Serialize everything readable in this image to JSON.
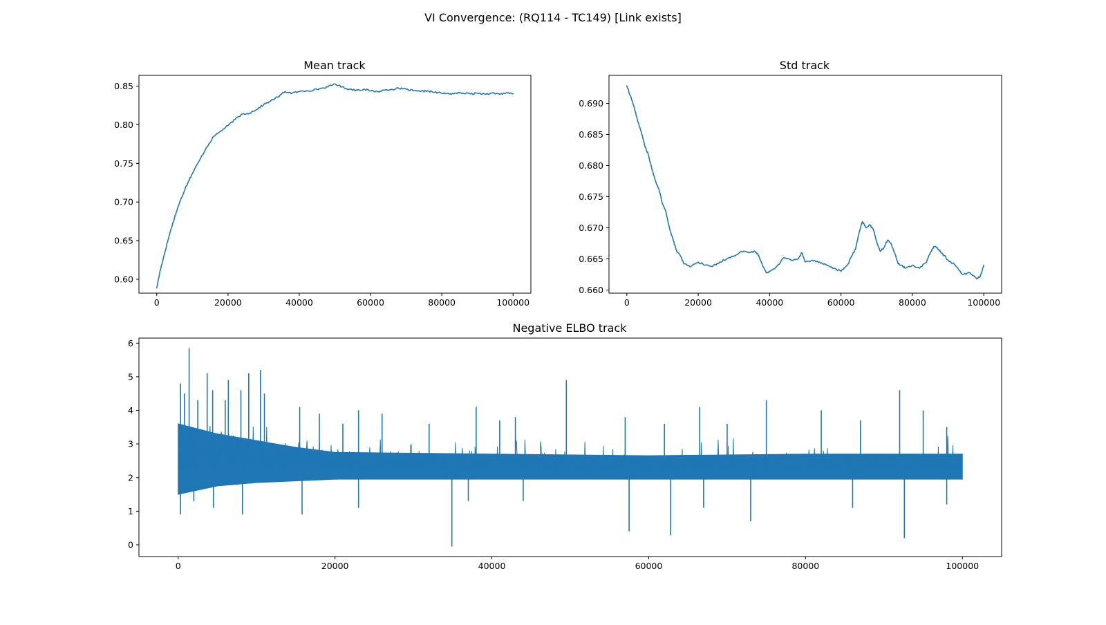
{
  "figure": {
    "suptitle": "VI Convergence: (RQ114 - TC149) [Link exists]",
    "line_color": "#1f77b4"
  },
  "chart_data": [
    {
      "id": "mean",
      "type": "line",
      "title": "Mean track",
      "xlabel": "",
      "ylabel": "",
      "xlim": [
        -5000,
        105000
      ],
      "ylim": [
        0.582,
        0.864
      ],
      "xticks": [
        0,
        20000,
        40000,
        60000,
        80000,
        100000
      ],
      "yticks": [
        0.6,
        0.65,
        0.7,
        0.75,
        0.8,
        0.85
      ],
      "ytick_decimals": 2,
      "grid": false,
      "series": [
        {
          "x": [
            0,
            1000,
            2000,
            3000,
            4000,
            5000,
            6000,
            7000,
            8000,
            9000,
            10000,
            12000,
            14000,
            16000,
            18000,
            20000,
            22000,
            24000,
            26000,
            28000,
            30000,
            32000,
            34000,
            36000,
            38000,
            40000,
            42000,
            44000,
            46000,
            48000,
            50000,
            52000,
            54000,
            56000,
            58000,
            60000,
            62000,
            64000,
            66000,
            68000,
            70000,
            72000,
            74000,
            76000,
            78000,
            80000,
            82000,
            84000,
            86000,
            88000,
            90000,
            92000,
            94000,
            96000,
            98000,
            100000
          ],
          "y": [
            0.589,
            0.612,
            0.63,
            0.648,
            0.665,
            0.68,
            0.694,
            0.706,
            0.718,
            0.728,
            0.737,
            0.754,
            0.771,
            0.785,
            0.792,
            0.799,
            0.807,
            0.814,
            0.815,
            0.82,
            0.826,
            0.831,
            0.836,
            0.843,
            0.841,
            0.843,
            0.844,
            0.845,
            0.847,
            0.849,
            0.853,
            0.849,
            0.846,
            0.845,
            0.846,
            0.844,
            0.843,
            0.845,
            0.846,
            0.847,
            0.846,
            0.844,
            0.843,
            0.844,
            0.842,
            0.841,
            0.84,
            0.841,
            0.841,
            0.84,
            0.841,
            0.84,
            0.841,
            0.84,
            0.841,
            0.84
          ]
        }
      ]
    },
    {
      "id": "std",
      "type": "line",
      "title": "Std track",
      "xlabel": "",
      "ylabel": "",
      "xlim": [
        -5000,
        105000
      ],
      "ylim": [
        0.6595,
        0.6945
      ],
      "xticks": [
        0,
        20000,
        40000,
        60000,
        80000,
        100000
      ],
      "yticks": [
        0.66,
        0.665,
        0.67,
        0.675,
        0.68,
        0.685,
        0.69
      ],
      "ytick_decimals": 3,
      "grid": false,
      "series": [
        {
          "x": [
            0,
            1000,
            2000,
            3000,
            4000,
            5000,
            6000,
            7000,
            8000,
            9000,
            10000,
            11000,
            12000,
            13000,
            14000,
            15000,
            16000,
            18000,
            20000,
            22000,
            24000,
            26000,
            28000,
            30000,
            32000,
            34000,
            36000,
            37000,
            38000,
            39000,
            40000,
            42000,
            44000,
            46000,
            48000,
            49000,
            50000,
            52000,
            54000,
            56000,
            58000,
            60000,
            62000,
            63000,
            64000,
            65000,
            66000,
            67000,
            68000,
            69000,
            70000,
            71000,
            72000,
            73000,
            74000,
            75000,
            76000,
            77000,
            78000,
            80000,
            82000,
            84000,
            85000,
            86000,
            87000,
            88000,
            89000,
            90000,
            92000,
            94000,
            96000,
            98000,
            99000,
            100000
          ],
          "y": [
            0.6928,
            0.6912,
            0.6895,
            0.6872,
            0.6855,
            0.6832,
            0.6818,
            0.6795,
            0.6775,
            0.6762,
            0.6738,
            0.6725,
            0.6698,
            0.668,
            0.6662,
            0.6655,
            0.6642,
            0.6638,
            0.6645,
            0.664,
            0.6638,
            0.6645,
            0.665,
            0.6655,
            0.6662,
            0.666,
            0.6662,
            0.6655,
            0.664,
            0.6628,
            0.663,
            0.6638,
            0.6652,
            0.6648,
            0.665,
            0.666,
            0.6645,
            0.6648,
            0.6645,
            0.664,
            0.6635,
            0.663,
            0.6642,
            0.6655,
            0.6665,
            0.669,
            0.671,
            0.67,
            0.6705,
            0.6698,
            0.6678,
            0.6662,
            0.6668,
            0.668,
            0.6675,
            0.666,
            0.6642,
            0.664,
            0.6635,
            0.664,
            0.6635,
            0.6645,
            0.666,
            0.667,
            0.6668,
            0.666,
            0.6655,
            0.6648,
            0.664,
            0.6625,
            0.6628,
            0.6618,
            0.6622,
            0.664
          ]
        }
      ]
    },
    {
      "id": "elbo",
      "type": "line",
      "title": "Negative ELBO track",
      "xlabel": "",
      "ylabel": "",
      "xlim": [
        -5000,
        105000
      ],
      "ylim": [
        -0.35,
        6.15
      ],
      "xticks": [
        0,
        20000,
        40000,
        60000,
        80000,
        100000
      ],
      "yticks": [
        0,
        1,
        2,
        3,
        4,
        5,
        6
      ],
      "ytick_decimals": 0,
      "grid": false,
      "band": {
        "x": [
          0,
          5000,
          10000,
          15000,
          20000,
          40000,
          60000,
          80000,
          100000
        ],
        "lower": [
          1.5,
          1.75,
          1.85,
          1.9,
          1.95,
          1.95,
          1.95,
          1.95,
          1.95
        ],
        "upper": [
          3.6,
          3.3,
          3.1,
          2.9,
          2.75,
          2.7,
          2.65,
          2.7,
          2.7
        ]
      },
      "spikes": [
        {
          "x": 300,
          "y": 4.8
        },
        {
          "x": 800,
          "y": 4.5
        },
        {
          "x": 1400,
          "y": 5.85
        },
        {
          "x": 2500,
          "y": 4.3
        },
        {
          "x": 3700,
          "y": 5.1
        },
        {
          "x": 4400,
          "y": 4.6
        },
        {
          "x": 6000,
          "y": 4.3
        },
        {
          "x": 6400,
          "y": 4.9
        },
        {
          "x": 8000,
          "y": 4.6
        },
        {
          "x": 9000,
          "y": 5.1
        },
        {
          "x": 10500,
          "y": 5.2
        },
        {
          "x": 11000,
          "y": 4.5
        },
        {
          "x": 15500,
          "y": 4.1
        },
        {
          "x": 18000,
          "y": 3.9
        },
        {
          "x": 21000,
          "y": 3.6
        },
        {
          "x": 23000,
          "y": 4.0
        },
        {
          "x": 26000,
          "y": 3.9
        },
        {
          "x": 32000,
          "y": 3.6
        },
        {
          "x": 38000,
          "y": 4.1
        },
        {
          "x": 41000,
          "y": 3.7
        },
        {
          "x": 43000,
          "y": 3.8
        },
        {
          "x": 49500,
          "y": 4.9
        },
        {
          "x": 57000,
          "y": 3.8
        },
        {
          "x": 62000,
          "y": 3.6
        },
        {
          "x": 66500,
          "y": 4.1
        },
        {
          "x": 70000,
          "y": 3.6
        },
        {
          "x": 75000,
          "y": 4.3
        },
        {
          "x": 82000,
          "y": 4.0
        },
        {
          "x": 87000,
          "y": 3.7
        },
        {
          "x": 92000,
          "y": 4.6
        },
        {
          "x": 95000,
          "y": 4.0
        },
        {
          "x": 98000,
          "y": 3.5
        },
        {
          "x": 300,
          "y": 0.9
        },
        {
          "x": 2000,
          "y": 1.3
        },
        {
          "x": 4500,
          "y": 1.1
        },
        {
          "x": 8200,
          "y": 0.9
        },
        {
          "x": 15800,
          "y": 0.9
        },
        {
          "x": 23000,
          "y": 1.1
        },
        {
          "x": 34900,
          "y": -0.05
        },
        {
          "x": 37000,
          "y": 1.3
        },
        {
          "x": 44000,
          "y": 1.3
        },
        {
          "x": 57500,
          "y": 0.4
        },
        {
          "x": 62800,
          "y": 0.28
        },
        {
          "x": 67000,
          "y": 1.1
        },
        {
          "x": 73000,
          "y": 0.7
        },
        {
          "x": 86000,
          "y": 1.1
        },
        {
          "x": 92600,
          "y": 0.2
        },
        {
          "x": 98000,
          "y": 1.2
        }
      ]
    }
  ]
}
